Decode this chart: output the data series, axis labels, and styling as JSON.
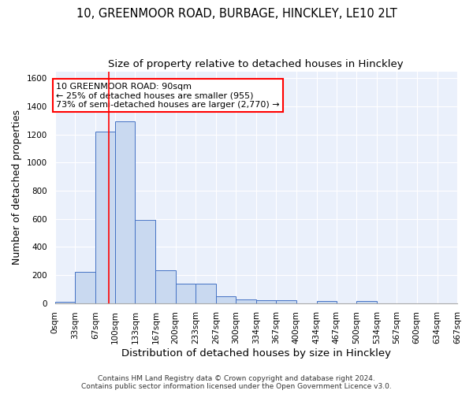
{
  "title_line1": "10, GREENMOOR ROAD, BURBAGE, HINCKLEY, LE10 2LT",
  "title_line2": "Size of property relative to detached houses in Hinckley",
  "xlabel": "Distribution of detached houses by size in Hinckley",
  "ylabel": "Number of detached properties",
  "bin_edges": [
    0,
    33,
    67,
    100,
    133,
    167,
    200,
    233,
    267,
    300,
    334,
    367,
    400,
    434,
    467,
    500,
    534,
    567,
    600,
    634,
    667
  ],
  "bar_heights": [
    10,
    220,
    1220,
    1295,
    590,
    235,
    140,
    140,
    48,
    25,
    20,
    20,
    0,
    15,
    0,
    15,
    0,
    0,
    0,
    0
  ],
  "bar_color": "#c9d9f0",
  "bar_edge_color": "#4472c4",
  "ylim": [
    0,
    1650
  ],
  "yticks": [
    0,
    200,
    400,
    600,
    800,
    1000,
    1200,
    1400,
    1600
  ],
  "red_line_x": 90,
  "annotation_text": "10 GREENMOOR ROAD: 90sqm\n← 25% of detached houses are smaller (955)\n73% of semi-detached houses are larger (2,770) →",
  "footer_line1": "Contains HM Land Registry data © Crown copyright and database right 2024.",
  "footer_line2": "Contains public sector information licensed under the Open Government Licence v3.0.",
  "bg_color": "#eaf0fb",
  "grid_color": "#ffffff",
  "title_fontsize": 10.5,
  "subtitle_fontsize": 9.5,
  "axis_label_fontsize": 9,
  "tick_fontsize": 7.5,
  "annotation_fontsize": 8,
  "footer_fontsize": 6.5
}
